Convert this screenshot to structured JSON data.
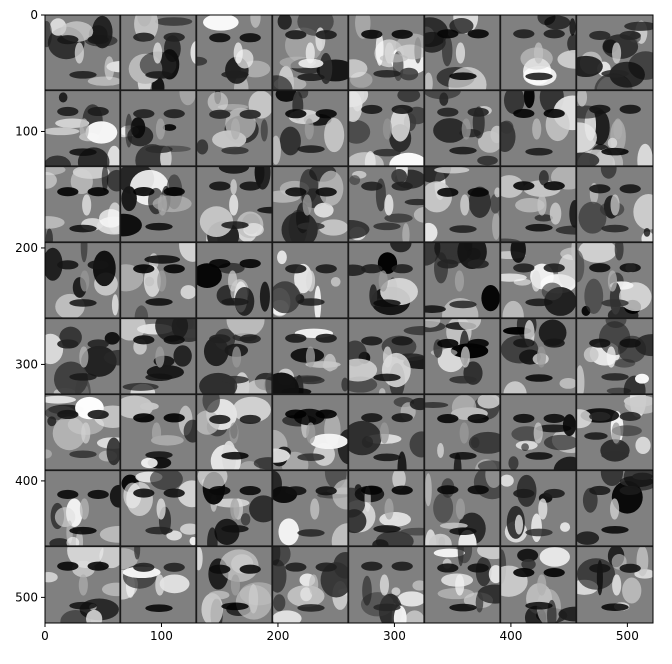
{
  "chart_data": {
    "type": "heatmap",
    "title": "",
    "xlabel": "",
    "ylabel": "",
    "colormap": "gray",
    "image_width": 522,
    "image_height": 522,
    "grid": {
      "rows": 8,
      "cols": 8,
      "tile_size": 64,
      "separator": 1.25
    },
    "xlim": [
      0,
      522
    ],
    "ylim": [
      522,
      0
    ],
    "xticks": [
      {
        "value": 0,
        "label": "0"
      },
      {
        "value": 100,
        "label": "100"
      },
      {
        "value": 200,
        "label": "200"
      },
      {
        "value": 300,
        "label": "300"
      },
      {
        "value": 400,
        "label": "400"
      },
      {
        "value": 500,
        "label": "500"
      }
    ],
    "yticks": [
      {
        "value": 0,
        "label": "0"
      },
      {
        "value": 100,
        "label": "100"
      },
      {
        "value": 200,
        "label": "200"
      },
      {
        "value": 300,
        "label": "300"
      },
      {
        "value": 400,
        "label": "400"
      },
      {
        "value": 500,
        "label": "500"
      }
    ],
    "tile_content": "grayscale face-like feature maps"
  },
  "colors": {
    "background": "#ffffff",
    "axes": "#000000",
    "tile_mid": "#808080",
    "tile_dark": "#1a1a1a",
    "tile_light": "#f5f5f5"
  }
}
